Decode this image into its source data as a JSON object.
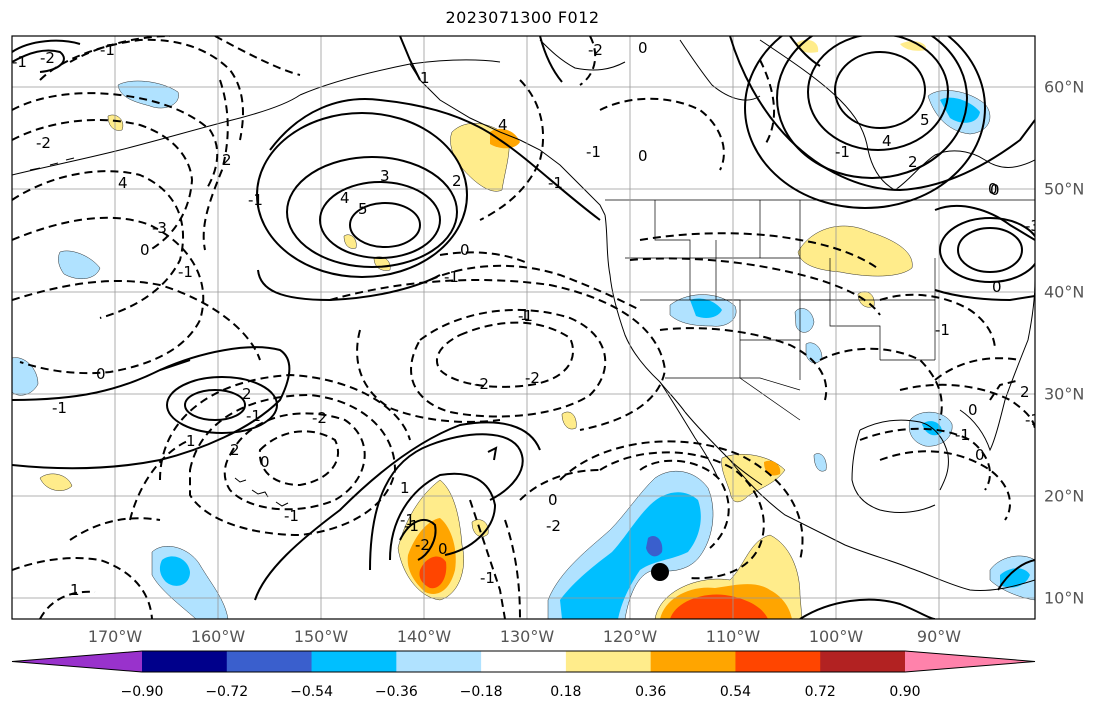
{
  "title": "2023071300 F012",
  "map": {
    "lon_labels": [
      "170°W",
      "160°W",
      "150°W",
      "140°W",
      "130°W",
      "120°W",
      "110°W",
      "100°W",
      "90°W"
    ],
    "lat_labels": [
      "60°N",
      "50°N",
      "40°N",
      "30°N",
      "20°N",
      "10°N"
    ],
    "contour_labels": [
      "-2",
      "0",
      "-1",
      "-2",
      "-1",
      "-2",
      "4",
      "2",
      "-3",
      "-1",
      "3",
      "4",
      "5",
      "2",
      "-1",
      "0",
      "1",
      "4",
      "-1",
      "0",
      "-1",
      "5",
      "4",
      "2",
      "-1",
      "0",
      "-3",
      "0",
      "-1",
      "-2",
      "-2",
      "0",
      "-1",
      "1",
      "2",
      "-1",
      "-2",
      "0",
      "-1",
      "1",
      "-1",
      "0",
      "-1",
      "-2",
      "1",
      "2",
      "0",
      "-1",
      "0",
      "-1",
      "0",
      "2",
      "-1",
      "-2",
      "1",
      "0",
      "-1",
      "-1",
      "0"
    ]
  },
  "colorbar": {
    "ticks": [
      "−0.90",
      "−0.72",
      "−0.54",
      "−0.36",
      "−0.18",
      "0.18",
      "0.36",
      "0.54",
      "0.72",
      "0.90"
    ],
    "colors": [
      "#9932cc",
      "#00008b",
      "#3a5fcd",
      "#00bfff",
      "#b0e2ff",
      "#ffffff",
      "#ffec8b",
      "#ffa500",
      "#ff4500",
      "#b22222",
      "#ff82ab"
    ]
  },
  "fill_colors": {
    "light_blue": "#b0e2ff",
    "blue": "#00bfff",
    "mid_blue": "#3a5fcd",
    "yellow": "#ffec8b",
    "orange": "#ffa500",
    "red_orange": "#ff4500"
  }
}
